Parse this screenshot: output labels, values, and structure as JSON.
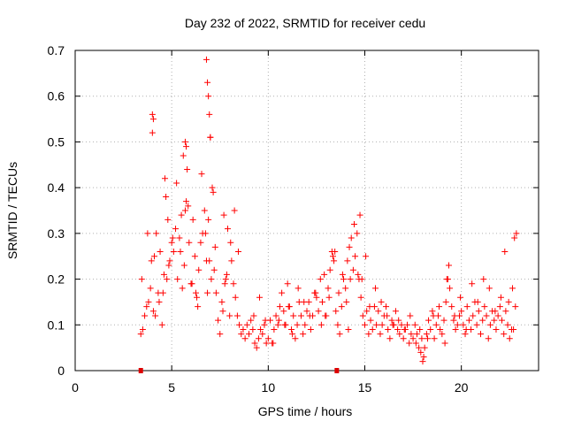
{
  "chart_data": {
    "type": "scatter",
    "title": "Day 232 of 2022, SRMTID for receiver cedu",
    "xlabel": "GPS time / hours",
    "ylabel": "SRMTID / TECUs",
    "xlim": [
      0,
      24
    ],
    "ylim": [
      0,
      0.7
    ],
    "xticks": [
      0,
      5,
      10,
      15,
      20
    ],
    "xtick_labels": [
      "0",
      "5",
      "10",
      "15",
      "20"
    ],
    "yticks": [
      0,
      0.1,
      0.2,
      0.3,
      0.4,
      0.5,
      0.6,
      0.7
    ],
    "ytick_labels": [
      "0",
      "0.1",
      "0.2",
      "0.3",
      "0.4",
      "0.5",
      "0.6",
      "0.7"
    ],
    "grid": true,
    "marker": "plus",
    "color": "#ff0000",
    "axis_markers": {
      "x": [
        3.4,
        13.55
      ],
      "color": "#dd0000"
    },
    "series": [
      {
        "name": "SRMTID",
        "x": [
          3.4,
          3.5,
          3.6,
          3.7,
          3.8,
          3.9,
          4.0,
          4.1,
          4.2,
          4.3,
          4.4,
          4.5,
          4.6,
          4.7,
          4.8,
          4.9,
          5.0,
          5.1,
          5.2,
          5.3,
          5.4,
          5.5,
          5.6,
          5.7,
          5.8,
          5.9,
          6.0,
          6.1,
          6.2,
          6.3,
          6.4,
          6.5,
          6.6,
          6.7,
          6.8,
          6.9,
          7.0,
          7.1,
          7.2,
          7.3,
          7.4,
          7.5,
          7.6,
          7.7,
          7.8,
          7.9,
          8.0,
          8.1,
          8.2,
          8.3,
          8.4,
          8.5,
          8.6,
          8.7,
          8.8,
          8.9,
          9.0,
          9.1,
          9.2,
          9.3,
          9.4,
          9.5,
          9.6,
          9.7,
          9.8,
          9.9,
          10.0,
          10.1,
          10.2,
          10.3,
          10.4,
          10.5,
          10.6,
          10.7,
          10.8,
          10.9,
          11.0,
          11.1,
          11.2,
          11.3,
          11.4,
          11.5,
          11.6,
          11.7,
          11.8,
          11.9,
          12.0,
          12.1,
          12.2,
          12.3,
          12.4,
          12.5,
          12.6,
          12.7,
          12.8,
          12.9,
          13.0,
          13.1,
          13.2,
          13.3,
          13.4,
          13.5,
          13.6,
          13.7,
          13.8,
          13.9,
          14.0,
          14.1,
          14.2,
          14.3,
          14.4,
          14.5,
          14.6,
          14.7,
          14.8,
          14.9,
          15.0,
          15.1,
          15.2,
          15.3,
          15.4,
          15.5,
          15.6,
          15.7,
          15.8,
          15.9,
          16.0,
          16.1,
          16.2,
          16.3,
          16.4,
          16.5,
          16.6,
          16.7,
          16.8,
          16.9,
          17.0,
          17.1,
          17.2,
          17.3,
          17.4,
          17.5,
          17.6,
          17.7,
          17.8,
          17.9,
          18.0,
          18.1,
          18.2,
          18.3,
          18.4,
          18.5,
          18.6,
          18.7,
          18.8,
          18.9,
          19.0,
          19.1,
          19.2,
          19.3,
          19.4,
          19.5,
          19.6,
          19.7,
          19.8,
          19.9,
          20.0,
          20.1,
          20.2,
          20.3,
          20.4,
          20.5,
          20.6,
          20.7,
          20.8,
          20.9,
          21.0,
          21.1,
          21.2,
          21.3,
          21.4,
          21.5,
          21.6,
          21.7,
          21.8,
          21.9,
          22.0,
          22.1,
          22.2,
          22.3,
          22.4,
          22.5,
          22.6,
          22.7,
          22.8,
          3.45,
          3.75,
          3.95,
          4.05,
          4.15,
          4.35,
          4.55,
          4.65,
          4.75,
          4.85,
          5.05,
          5.25,
          5.45,
          5.55,
          5.65,
          5.75,
          5.85,
          6.05,
          6.25,
          6.35,
          6.55,
          6.75,
          6.85,
          6.95,
          7.05,
          7.15,
          7.25,
          7.65,
          7.75,
          7.85,
          8.05,
          8.25,
          8.45,
          9.25,
          9.55,
          9.85,
          10.25,
          10.55,
          10.85,
          11.05,
          11.25,
          11.55,
          11.85,
          12.15,
          12.45,
          12.75,
          12.95,
          13.15,
          13.35,
          13.45,
          13.65,
          13.85,
          14.05,
          14.15,
          14.25,
          14.45,
          14.65,
          14.75,
          14.85,
          15.05,
          15.25,
          15.55,
          15.85,
          16.15,
          16.45,
          16.75,
          17.05,
          17.35,
          17.65,
          17.85,
          17.95,
          18.05,
          18.25,
          18.55,
          18.85,
          19.15,
          19.25,
          19.35,
          19.65,
          19.95,
          20.25,
          20.55,
          20.85,
          21.15,
          21.45,
          21.75,
          22.05,
          22.25,
          22.45,
          22.65,
          22.75,
          22.85,
          4.0,
          4.05,
          5.7,
          5.75,
          6.8,
          6.85,
          6.9,
          6.95,
          7.0
        ],
        "y": [
          0.08,
          0.09,
          0.12,
          0.14,
          0.15,
          0.18,
          0.52,
          0.25,
          0.3,
          0.17,
          0.26,
          0.1,
          0.21,
          0.38,
          0.33,
          0.24,
          0.28,
          0.26,
          0.31,
          0.2,
          0.29,
          0.34,
          0.47,
          0.35,
          0.44,
          0.28,
          0.19,
          0.33,
          0.25,
          0.16,
          0.22,
          0.28,
          0.3,
          0.35,
          0.24,
          0.33,
          0.51,
          0.4,
          0.22,
          0.17,
          0.11,
          0.08,
          0.15,
          0.34,
          0.2,
          0.31,
          0.12,
          0.24,
          0.19,
          0.16,
          0.12,
          0.1,
          0.08,
          0.09,
          0.07,
          0.1,
          0.08,
          0.11,
          0.09,
          0.06,
          0.05,
          0.07,
          0.09,
          0.08,
          0.1,
          0.06,
          0.07,
          0.11,
          0.06,
          0.09,
          0.12,
          0.1,
          0.14,
          0.17,
          0.13,
          0.1,
          0.19,
          0.14,
          0.09,
          0.12,
          0.07,
          0.1,
          0.15,
          0.12,
          0.08,
          0.1,
          0.13,
          0.15,
          0.09,
          0.12,
          0.17,
          0.16,
          0.13,
          0.2,
          0.15,
          0.21,
          0.12,
          0.18,
          0.22,
          0.26,
          0.24,
          0.13,
          0.1,
          0.08,
          0.14,
          0.2,
          0.18,
          0.24,
          0.27,
          0.29,
          0.22,
          0.25,
          0.3,
          0.2,
          0.16,
          0.12,
          0.1,
          0.13,
          0.08,
          0.11,
          0.09,
          0.14,
          0.1,
          0.13,
          0.08,
          0.1,
          0.12,
          0.14,
          0.09,
          0.07,
          0.11,
          0.1,
          0.13,
          0.09,
          0.08,
          0.1,
          0.07,
          0.09,
          0.1,
          0.06,
          0.08,
          0.07,
          0.1,
          0.08,
          0.05,
          0.04,
          0.02,
          0.05,
          0.08,
          0.11,
          0.09,
          0.13,
          0.07,
          0.1,
          0.12,
          0.09,
          0.08,
          0.11,
          0.15,
          0.2,
          0.18,
          0.14,
          0.11,
          0.09,
          0.1,
          0.12,
          0.13,
          0.1,
          0.08,
          0.14,
          0.11,
          0.09,
          0.12,
          0.15,
          0.1,
          0.13,
          0.08,
          0.11,
          0.14,
          0.12,
          0.07,
          0.1,
          0.13,
          0.11,
          0.09,
          0.12,
          0.14,
          0.11,
          0.08,
          0.13,
          0.1,
          0.07,
          0.09,
          0.09,
          0.14,
          0.2,
          0.3,
          0.24,
          0.13,
          0.12,
          0.15,
          0.17,
          0.42,
          0.2,
          0.23,
          0.29,
          0.41,
          0.26,
          0.18,
          0.23,
          0.37,
          0.36,
          0.19,
          0.17,
          0.14,
          0.43,
          0.3,
          0.17,
          0.24,
          0.2,
          0.39,
          0.27,
          0.13,
          0.19,
          0.21,
          0.28,
          0.35,
          0.26,
          0.12,
          0.16,
          0.11,
          0.06,
          0.11,
          0.1,
          0.14,
          0.08,
          0.18,
          0.15,
          0.12,
          0.17,
          0.1,
          0.12,
          0.16,
          0.25,
          0.26,
          0.17,
          0.21,
          0.15,
          0.09,
          0.2,
          0.32,
          0.21,
          0.34,
          0.2,
          0.25,
          0.14,
          0.18,
          0.15,
          0.12,
          0.1,
          0.11,
          0.09,
          0.12,
          0.06,
          0.09,
          0.07,
          0.03,
          0.07,
          0.12,
          0.14,
          0.06,
          0.2,
          0.23,
          0.12,
          0.16,
          0.09,
          0.19,
          0.15,
          0.2,
          0.18,
          0.13,
          0.16,
          0.26,
          0.15,
          0.18,
          0.29,
          0.3,
          0.56,
          0.55,
          0.5,
          0.49,
          0.68,
          0.63,
          0.6,
          0.56,
          0.51
        ]
      }
    ]
  }
}
